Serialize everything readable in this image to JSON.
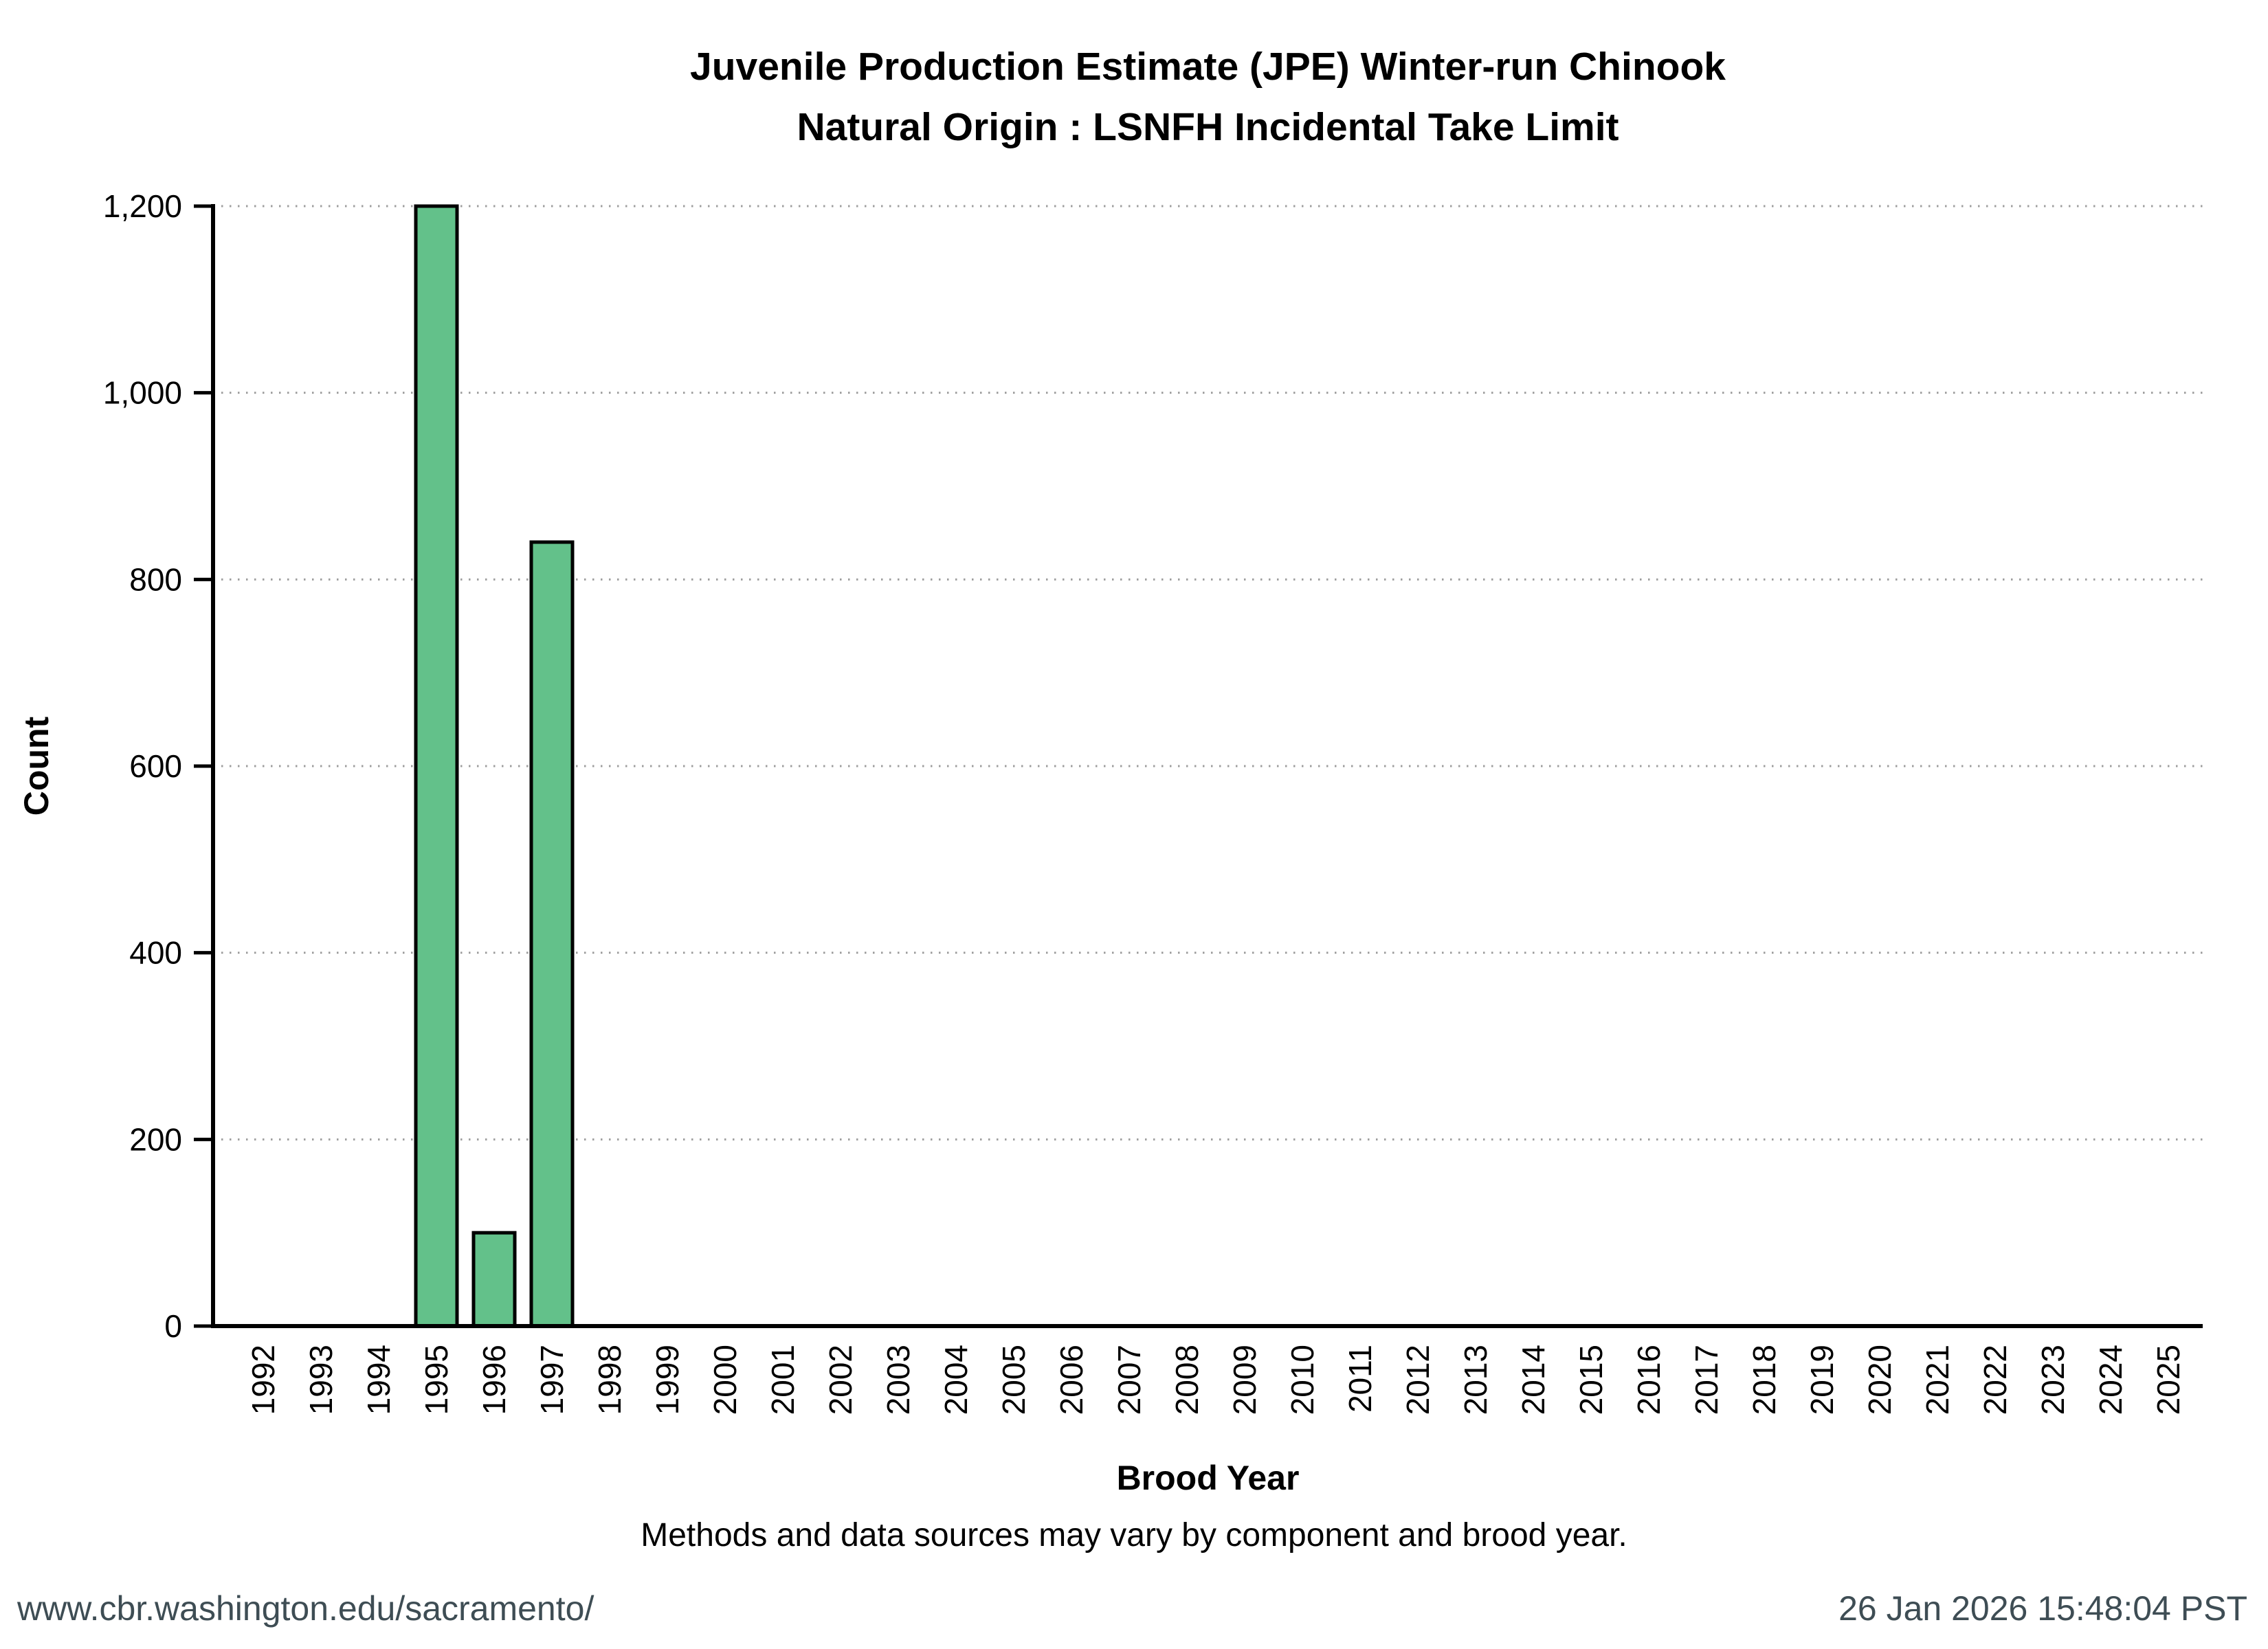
{
  "title": {
    "line1": "Juvenile Production Estimate (JPE) Winter-run Chinook",
    "line2": "Natural Origin : LSNFH Incidental Take Limit"
  },
  "caption": "Methods and data sources may vary by component and brood year.",
  "footer": {
    "left": "www.cbr.washington.edu/sacramento/",
    "right": "26 Jan 2026 15:48:04 PST"
  },
  "colors": {
    "bar": "#63c18a",
    "bar_border": "#000000",
    "axis": "#000000",
    "grid": "#9e9e9e",
    "footer_text": "#3e4d54"
  },
  "chart_data": {
    "type": "bar",
    "title": "Juvenile Production Estimate (JPE) Winter-run Chinook",
    "subtitle": "Natural Origin : LSNFH Incidental Take Limit",
    "xlabel": "Brood Year",
    "ylabel": "Count",
    "categories": [
      "1992",
      "1993",
      "1994",
      "1995",
      "1996",
      "1997",
      "1998",
      "1999",
      "2000",
      "2001",
      "2002",
      "2003",
      "2004",
      "2005",
      "2006",
      "2007",
      "2008",
      "2009",
      "2010",
      "2011",
      "2012",
      "2013",
      "2014",
      "2015",
      "2016",
      "2017",
      "2018",
      "2019",
      "2020",
      "2021",
      "2022",
      "2023",
      "2024",
      "2025"
    ],
    "values": [
      0,
      0,
      0,
      1200,
      100,
      840,
      0,
      0,
      0,
      0,
      0,
      0,
      0,
      0,
      0,
      0,
      0,
      0,
      0,
      0,
      0,
      0,
      0,
      0,
      0,
      0,
      0,
      0,
      0,
      0,
      0,
      0,
      0,
      0
    ],
    "ylim": [
      0,
      1200
    ],
    "yticks": [
      0,
      200,
      400,
      600,
      800,
      1000,
      1200
    ],
    "ytick_labels": [
      "0",
      "200",
      "400",
      "600",
      "800",
      "1,000",
      "1,200"
    ],
    "grid": "horizontal-dotted",
    "legend": "none",
    "x_tick_rotation": -90
  }
}
